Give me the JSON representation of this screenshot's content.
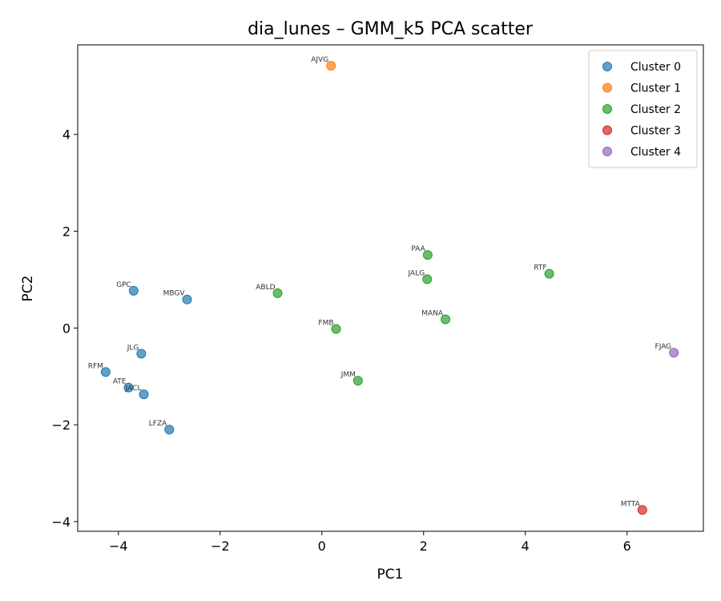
{
  "chart_data": {
    "type": "scatter",
    "title": "dia_lunes – GMM_k5 PCA scatter",
    "xlabel": "PC1",
    "ylabel": "PC2",
    "xlim": [
      -4.8,
      7.5
    ],
    "ylim": [
      -4.2,
      5.85
    ],
    "xticks": [
      -4,
      -2,
      0,
      2,
      4,
      6
    ],
    "yticks": [
      -4,
      -2,
      0,
      2,
      4
    ],
    "legend_position": "top-right",
    "grid": false,
    "series": [
      {
        "name": "Cluster 0",
        "color": "#1f77b4",
        "points": [
          {
            "label": "GPC",
            "x": -3.7,
            "y": 0.77
          },
          {
            "label": "MBGV",
            "x": -2.65,
            "y": 0.59
          },
          {
            "label": "JLG",
            "x": -3.55,
            "y": -0.53
          },
          {
            "label": "RFM",
            "x": -4.25,
            "y": -0.91
          },
          {
            "label": "ATE",
            "x": -3.8,
            "y": -1.23
          },
          {
            "label": "JACL",
            "x": -3.5,
            "y": -1.37
          },
          {
            "label": "LFZA",
            "x": -3.0,
            "y": -2.1
          }
        ]
      },
      {
        "name": "Cluster 1",
        "color": "#ff7f0e",
        "points": [
          {
            "label": "AJVG",
            "x": 0.18,
            "y": 5.42
          }
        ]
      },
      {
        "name": "Cluster 2",
        "color": "#2ca02c",
        "points": [
          {
            "label": "PAA",
            "x": 2.08,
            "y": 1.51
          },
          {
            "label": "JALG",
            "x": 2.07,
            "y": 1.01
          },
          {
            "label": "RTF",
            "x": 4.47,
            "y": 1.12
          },
          {
            "label": "ABLD",
            "x": -0.87,
            "y": 0.72
          },
          {
            "label": "MANA",
            "x": 2.43,
            "y": 0.18
          },
          {
            "label": "FMB",
            "x": 0.28,
            "y": -0.02
          },
          {
            "label": "JMM",
            "x": 0.71,
            "y": -1.09
          }
        ]
      },
      {
        "name": "Cluster 3",
        "color": "#d62728",
        "points": [
          {
            "label": "MTTA",
            "x": 6.3,
            "y": -3.76
          }
        ]
      },
      {
        "name": "Cluster 4",
        "color": "#9467bd",
        "points": [
          {
            "label": "FJAG",
            "x": 6.92,
            "y": -0.51
          }
        ]
      }
    ]
  }
}
